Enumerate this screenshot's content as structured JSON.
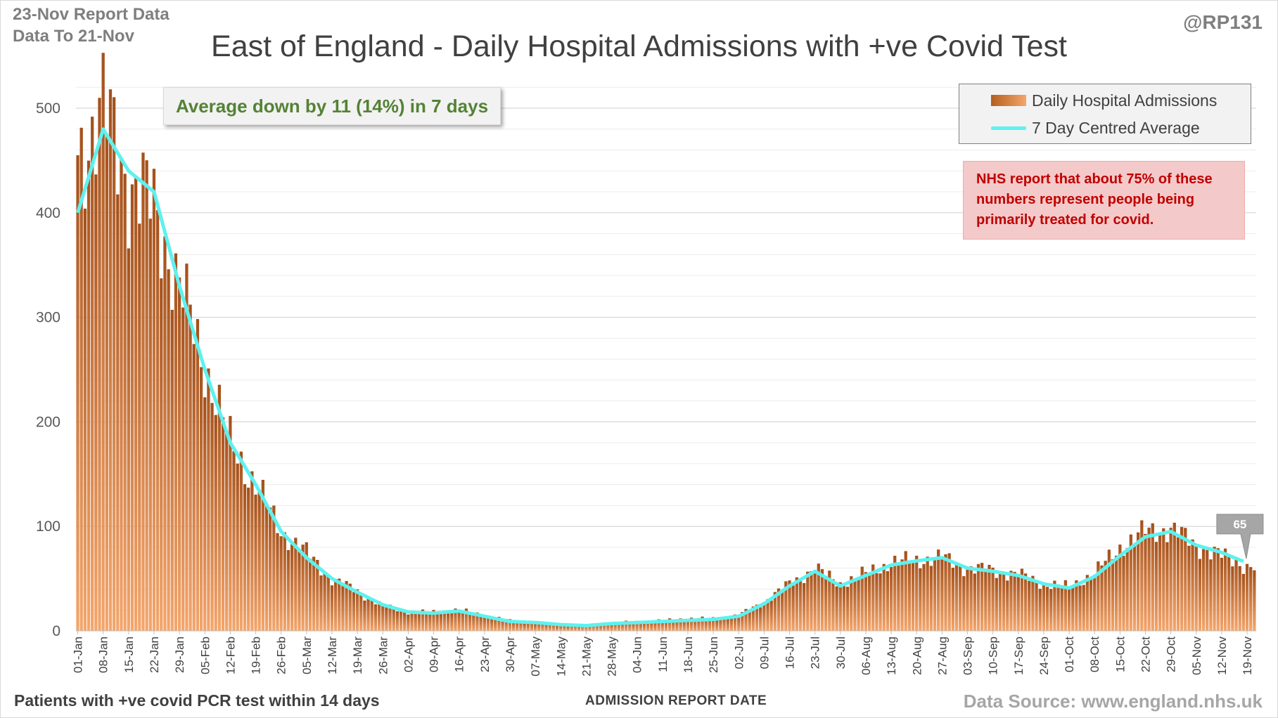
{
  "header": {
    "report_line1": "23-Nov Report Data",
    "report_line2": "Data To 21-Nov",
    "handle": "@RP131"
  },
  "summary": "Average down by 11 (14%) in 7 days",
  "nhs_note": "NHS report that about 75% of these numbers represent people being primarily treated for covid.",
  "footer": {
    "left": "Patients with +ve covid PCR test within 14 days",
    "center": "ADMISSION REPORT DATE",
    "right": "Data Source: www.england.nhs.uk"
  },
  "colors": {
    "bar_dark": "#a4501a",
    "bar_light": "#f4a66c",
    "average_line": "#5ef1ef",
    "summary_text": "#548235",
    "note_text": "#c00000"
  },
  "chart_data": {
    "type": "bar",
    "title": "East of England - Daily Hospital Admissions with +ve Covid Test",
    "xlabel": "ADMISSION REPORT DATE",
    "ylabel": "",
    "ylim": [
      0,
      500
    ],
    "yticks": [
      0,
      100,
      200,
      300,
      400,
      500
    ],
    "grid": true,
    "legend_position": "top-right",
    "x_start": "01-Jan",
    "x_end": "21-Nov",
    "x_ticks": [
      "01-Jan",
      "08-Jan",
      "15-Jan",
      "22-Jan",
      "29-Jan",
      "05-Feb",
      "12-Feb",
      "19-Feb",
      "26-Feb",
      "05-Mar",
      "12-Mar",
      "19-Mar",
      "26-Mar",
      "02-Apr",
      "09-Apr",
      "16-Apr",
      "23-Apr",
      "30-Apr",
      "07-May",
      "14-May",
      "21-May",
      "28-May",
      "04-Jun",
      "11-Jun",
      "18-Jun",
      "25-Jun",
      "02-Jul",
      "09-Jul",
      "16-Jul",
      "23-Jul",
      "30-Jul",
      "06-Aug",
      "13-Aug",
      "20-Aug",
      "27-Aug",
      "03-Sep",
      "10-Sep",
      "17-Sep",
      "24-Sep",
      "01-Oct",
      "08-Oct",
      "15-Oct",
      "22-Oct",
      "29-Oct",
      "05-Nov",
      "12-Nov",
      "19-Nov"
    ],
    "series": [
      {
        "name": "Daily Hospital Admissions",
        "type": "bar",
        "weekly_values": [
          455,
          498,
          430,
          405,
          330,
          255,
          180,
          140,
          95,
          75,
          50,
          38,
          24,
          18,
          18,
          20,
          15,
          10,
          8,
          6,
          6,
          8,
          9,
          10,
          12,
          12,
          15,
          28,
          45,
          60,
          45,
          55,
          65,
          68,
          70,
          60,
          58,
          54,
          45,
          42,
          55,
          80,
          95,
          98,
          82,
          72,
          62,
          60
        ]
      },
      {
        "name": "7 Day Centred Average",
        "type": "line",
        "weekly_values": [
          400,
          480,
          440,
          420,
          330,
          250,
          180,
          140,
          95,
          70,
          50,
          37,
          25,
          18,
          17,
          19,
          14,
          9,
          8,
          6,
          5,
          7,
          8,
          9,
          10,
          11,
          14,
          26,
          43,
          57,
          43,
          53,
          63,
          67,
          70,
          60,
          57,
          53,
          45,
          41,
          52,
          72,
          90,
          95,
          82,
          75,
          65
        ]
      }
    ],
    "annotations": [
      {
        "label": "65",
        "value": 65,
        "at": "21-Nov"
      }
    ]
  }
}
